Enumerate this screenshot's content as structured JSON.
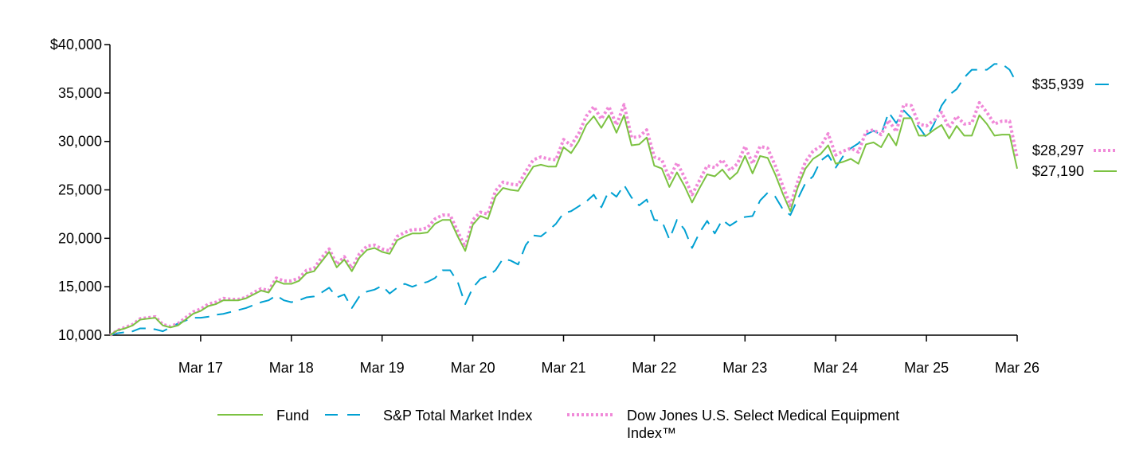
{
  "chart_data": {
    "type": "line",
    "title": "",
    "xlabel": "",
    "ylabel": "",
    "ylim": [
      10000,
      40000
    ],
    "y_ticks": [
      10000,
      15000,
      20000,
      25000,
      30000,
      35000,
      40000
    ],
    "y_tick_labels": [
      "10,000",
      "15,000",
      "20,000",
      "25,000",
      "30,000",
      "35,000",
      "$40,000"
    ],
    "x_ticks": [
      12,
      24,
      36,
      48,
      60,
      72,
      84,
      96,
      108,
      120
    ],
    "x_tick_labels": [
      "Mar 17",
      "Mar 18",
      "Mar 19",
      "Mar 20",
      "Mar 21",
      "Mar 22",
      "Mar 23",
      "Mar 24",
      "Mar 25",
      "Mar 26"
    ],
    "x": [
      0,
      1,
      2,
      3,
      4,
      5,
      6,
      7,
      8,
      9,
      10,
      11,
      12,
      13,
      14,
      15,
      16,
      17,
      18,
      19,
      20,
      21,
      22,
      23,
      24,
      25,
      26,
      27,
      28,
      29,
      30,
      31,
      32,
      33,
      34,
      35,
      36,
      37,
      38,
      39,
      40,
      41,
      42,
      43,
      44,
      45,
      46,
      47,
      48,
      49,
      50,
      51,
      52,
      53,
      54,
      55,
      56,
      57,
      58,
      59,
      60,
      61,
      62,
      63,
      64,
      65,
      66,
      67,
      68,
      69,
      70,
      71,
      72,
      73,
      74,
      75,
      76,
      77,
      78,
      79,
      80,
      81,
      82,
      83,
      84,
      85,
      86,
      87,
      88,
      89,
      90,
      91,
      92,
      93,
      94,
      95,
      96,
      97,
      98,
      99,
      100,
      101,
      102,
      103,
      104,
      105,
      106,
      107,
      108,
      109,
      110,
      111,
      112,
      113,
      114,
      115,
      116,
      117,
      118,
      119,
      120
    ],
    "series": [
      {
        "name": "Fund",
        "color": "#7cc242",
        "style": "solid",
        "end_label": "$27,190",
        "values": [
          10000,
          10500,
          10700,
          11000,
          11600,
          11700,
          11800,
          11000,
          10800,
          11000,
          11600,
          12200,
          12500,
          13000,
          13200,
          13600,
          13600,
          13600,
          13800,
          14200,
          14600,
          14400,
          15600,
          15300,
          15300,
          15600,
          16400,
          16600,
          17600,
          18600,
          17000,
          17800,
          16600,
          18000,
          18800,
          19000,
          18600,
          18400,
          19800,
          20200,
          20500,
          20500,
          20600,
          21500,
          21900,
          21900,
          20200,
          18700,
          21400,
          22300,
          22000,
          24300,
          25200,
          25000,
          24900,
          26200,
          27400,
          27600,
          27400,
          27400,
          29400,
          28800,
          30000,
          31700,
          32600,
          31400,
          32700,
          30900,
          32700,
          29600,
          29700,
          30400,
          27500,
          27200,
          25300,
          26800,
          25400,
          23700,
          25200,
          26600,
          26400,
          27100,
          26100,
          26800,
          28500,
          26700,
          28500,
          28300,
          26600,
          24600,
          22800,
          25300,
          27200,
          28200,
          28700,
          29600,
          27700,
          27900,
          28200,
          27700,
          29700,
          29900,
          29400,
          30800,
          29600,
          32400,
          32400,
          30600,
          30600,
          31200,
          31700,
          30300,
          31600,
          30600,
          30600,
          32700,
          31800,
          30600,
          30700,
          30700,
          27190
        ]
      },
      {
        "name": "S&P Total Market Index",
        "color": "#00a0d2",
        "style": "dashed",
        "end_label": "$35,939",
        "values": [
          10000,
          10200,
          10300,
          10400,
          10700,
          10700,
          10600,
          10400,
          10800,
          11200,
          11500,
          11800,
          11800,
          11900,
          12100,
          12200,
          12400,
          12600,
          12800,
          13100,
          13400,
          13600,
          14100,
          13600,
          13400,
          13600,
          13900,
          14000,
          14400,
          14900,
          13900,
          14200,
          12800,
          14000,
          14500,
          14700,
          15100,
          14300,
          14900,
          15300,
          15000,
          15300,
          15500,
          15900,
          16700,
          16700,
          15500,
          13200,
          14900,
          15800,
          16100,
          16700,
          17900,
          17700,
          17300,
          19300,
          20300,
          20200,
          20800,
          21500,
          22600,
          22800,
          23300,
          23800,
          24500,
          23200,
          24900,
          24300,
          25500,
          24200,
          23400,
          24000,
          21900,
          21800,
          19900,
          21900,
          20900,
          19000,
          20600,
          21800,
          20500,
          21900,
          21300,
          21800,
          22200,
          22300,
          23900,
          24700,
          24300,
          23000,
          22400,
          24100,
          25700,
          26400,
          28000,
          28600,
          27300,
          28500,
          29300,
          29800,
          30700,
          31100,
          30700,
          33000,
          31900,
          33200,
          32400,
          31500,
          30400,
          31800,
          33700,
          34800,
          35400,
          36600,
          37400,
          37400,
          37400,
          38000,
          38000,
          37400,
          35939
        ]
      },
      {
        "name": "Dow Jones U.S. Select Medical Equipment Index™",
        "color": "#f089d8",
        "style": "dotted",
        "end_label": "$28,297",
        "values": [
          10000,
          10500,
          10800,
          11100,
          11700,
          11800,
          11900,
          11100,
          10900,
          11200,
          11800,
          12400,
          12700,
          13200,
          13400,
          13800,
          13700,
          13700,
          13900,
          14400,
          14800,
          14600,
          15900,
          15600,
          15600,
          15900,
          16700,
          16900,
          18000,
          18900,
          17300,
          18100,
          16900,
          18400,
          19200,
          19300,
          18900,
          18700,
          20200,
          20600,
          20900,
          20900,
          21100,
          22000,
          22400,
          22400,
          20700,
          19100,
          21900,
          22700,
          22500,
          24900,
          25800,
          25600,
          25500,
          26900,
          28100,
          28400,
          28200,
          28100,
          30200,
          29600,
          30800,
          32600,
          33600,
          32300,
          33600,
          31700,
          33800,
          30400,
          30500,
          31200,
          28400,
          28100,
          26200,
          27800,
          26300,
          24500,
          26000,
          27500,
          27300,
          28100,
          27000,
          27700,
          29500,
          27700,
          29500,
          29300,
          27500,
          25400,
          23400,
          25900,
          27900,
          29000,
          29500,
          30800,
          28600,
          29000,
          29300,
          28900,
          31000,
          31200,
          30700,
          32200,
          31000,
          33800,
          33700,
          31800,
          31600,
          32200,
          33000,
          31400,
          32600,
          31800,
          31900,
          34000,
          33000,
          31800,
          32100,
          32100,
          28297
        ]
      }
    ],
    "legend_position": "bottom",
    "grid": false
  }
}
